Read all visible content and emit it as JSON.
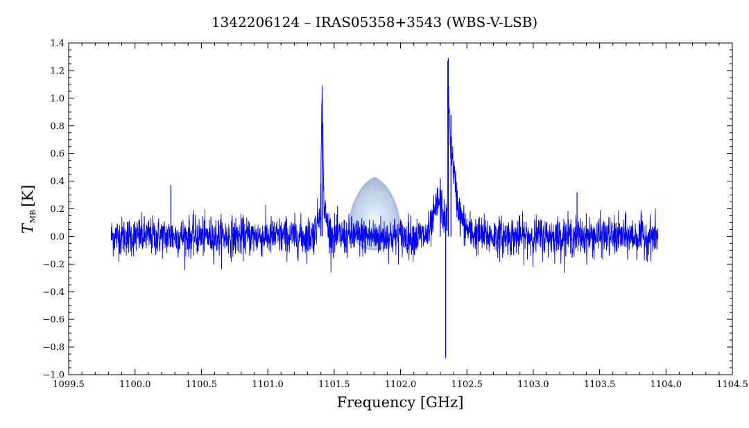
{
  "chart_data": {
    "type": "line",
    "title": "1342206124 – IRAS05358+3543 (WBS-V-LSB)",
    "xlabel": "Frequency [GHz]",
    "ylabel": {
      "symbol": "T",
      "subscript": "MB",
      "unit": "[K]"
    },
    "xlim": [
      1099.5,
      1104.5
    ],
    "ylim": [
      -1.0,
      1.4
    ],
    "x_ticks": [
      1099.5,
      1100.0,
      1100.5,
      1101.0,
      1101.5,
      1102.0,
      1102.5,
      1103.0,
      1103.5,
      1104.0,
      1104.5
    ],
    "x_tick_labels": [
      "1099.5",
      "1100.0",
      "1100.5",
      "1101.0",
      "1101.5",
      "1102.0",
      "1102.5",
      "1103.0",
      "1103.5",
      "1104.0",
      "1104.5"
    ],
    "y_ticks": [
      -1.0,
      -0.8,
      -0.6,
      -0.4,
      -0.2,
      0.0,
      0.2,
      0.4,
      0.6,
      0.8,
      1.0,
      1.2,
      1.4
    ],
    "y_tick_labels": [
      "−1.0",
      "−0.8",
      "−0.6",
      "−0.4",
      "−0.2",
      "0.0",
      "0.2",
      "0.4",
      "0.6",
      "0.8",
      "1.0",
      "1.2",
      "1.4"
    ],
    "grid": false,
    "series": [
      {
        "color": "#0000ff",
        "x_range": [
          1099.82,
          1103.94
        ],
        "noise_rms": 0.07,
        "baseline": 0.0,
        "features": [
          {
            "x": 1100.27,
            "y": 0.37
          },
          {
            "x": 1101.41,
            "y": 1.0
          },
          {
            "x": 1101.4,
            "y": 0.38
          },
          {
            "x": 1102.3,
            "y": 0.42
          },
          {
            "x": 1102.34,
            "y": -0.88
          },
          {
            "x": 1102.36,
            "y": 1.29
          },
          {
            "x": 1102.38,
            "y": 0.88
          },
          {
            "x": 1102.45,
            "y": 0.22
          },
          {
            "x": 1103.33,
            "y": 0.32
          }
        ]
      }
    ]
  }
}
